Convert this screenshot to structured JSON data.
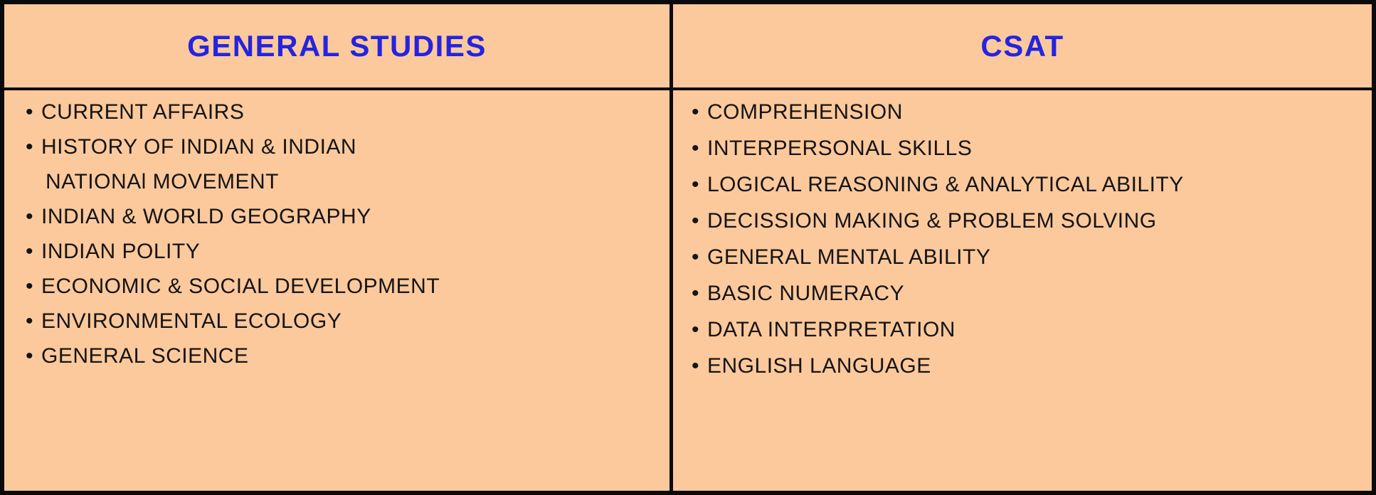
{
  "colors": {
    "background": "#fcc99c",
    "border": "#0a0a0a",
    "header_text": "#2424e0",
    "body_text": "#141414"
  },
  "table": {
    "columns": [
      {
        "header": "GENERAL STUDIES",
        "lines": [
          {
            "bullet": "•",
            "text": "CURRENT AFFAIRS"
          },
          {
            "bullet": "•",
            "text": "HISTORY OF INDIAN & INDIAN"
          },
          {
            "text": "NATIONAl MOVEMENT"
          },
          {
            "bullet": "•",
            "text": "INDIAN & WORLD GEOGRAPHY"
          },
          {
            "bullet": "•",
            "text": "INDIAN POLITY"
          },
          {
            "bullet": "•",
            "text": "ECONOMIC & SOCIAL DEVELOPMENT"
          },
          {
            "bullet": "•",
            "text": "ENVIRONMENTAL ECOLOGY"
          },
          {
            "bullet": "•",
            "text": "GENERAL SCIENCE"
          }
        ]
      },
      {
        "header": "CSAT",
        "lines": [
          {
            "bullet": "•",
            "text": "COMPREHENSION"
          },
          {
            "bullet": "•",
            "text": "INTERPERSONAL SKILLS"
          },
          {
            "bullet": "•",
            "text": "LOGICAL REASONING & ANALYTICAL ABILITY"
          },
          {
            "bullet": "•",
            "text": "DECISSION MAKING & PROBLEM SOLVING"
          },
          {
            "bullet": "•",
            "text": "GENERAL MENTAL ABILITY"
          },
          {
            "bullet": "•",
            "text": "BASIC NUMERACY"
          },
          {
            "bullet": "•",
            "text": "DATA INTERPRETATION"
          },
          {
            "bullet": "•",
            "text": "ENGLISH LANGUAGE"
          }
        ]
      }
    ]
  }
}
